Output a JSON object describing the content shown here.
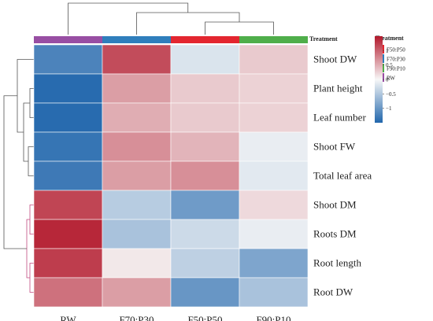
{
  "chart_data": {
    "type": "heatmap",
    "columns": [
      "RW",
      "F70:P30",
      "F50:P50",
      "F90:P10"
    ],
    "rows": [
      "Shoot DW",
      "Plant height",
      "Leaf number",
      "Shoot FW",
      "Total leaf area",
      "Shoot DM",
      "Roots DM",
      "Root length",
      "Root DW"
    ],
    "values": [
      [
        -1.2,
        1.15,
        -0.2,
        0.3
      ],
      [
        -1.45,
        0.6,
        0.3,
        0.25
      ],
      [
        -1.45,
        0.5,
        0.3,
        0.25
      ],
      [
        -1.35,
        0.7,
        0.45,
        -0.1
      ],
      [
        -1.3,
        0.6,
        0.7,
        -0.15
      ],
      [
        1.2,
        -0.45,
        -0.95,
        0.2
      ],
      [
        1.4,
        -0.55,
        -0.3,
        -0.1
      ],
      [
        1.25,
        0.1,
        -0.4,
        -0.85
      ],
      [
        0.9,
        0.6,
        -1.0,
        -0.55
      ]
    ],
    "column_groups": [
      "RW",
      "F70:P30",
      "F50:P50",
      "F90:P10"
    ],
    "annotation_track_label": "Treatment",
    "legend": {
      "title": "Treatment",
      "entries": [
        {
          "label": "F50:P50",
          "color": "#e3262f"
        },
        {
          "label": "F70:P30",
          "color": "#2f7ebc"
        },
        {
          "label": "F90:P10",
          "color": "#4fae4a"
        },
        {
          "label": "RW",
          "color": "#984ea3"
        }
      ]
    },
    "colorbar": {
      "range": [
        -1.5,
        1.5
      ],
      "ticks": [
        1,
        0.5,
        0,
        -0.5,
        -1
      ],
      "tick_labels": [
        "1",
        "0.5",
        "0",
        "−0.5",
        "−1"
      ]
    },
    "group_colors": {
      "RW": "#984ea3",
      "F70:P30": "#2f7ebc",
      "F50:P50": "#e3262f",
      "F90:P10": "#4fae4a"
    },
    "scale_colors": {
      "low": "#2166ac",
      "mid": "#f7f7f7",
      "high": "#b2182b"
    }
  }
}
